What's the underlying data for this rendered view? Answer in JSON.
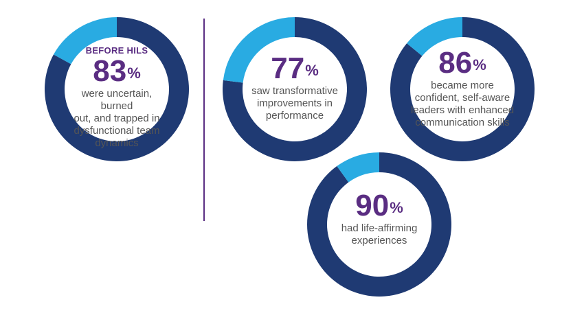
{
  "colors": {
    "main": "#1f3a73",
    "accent": "#29abe2",
    "text_purple": "#5a2d82",
    "caption": "#555555"
  },
  "chart_data": [
    {
      "type": "pie",
      "id": "before",
      "pre_label": "BEFORE HILS",
      "value": 83,
      "value_text": "83",
      "unit": "%",
      "caption": [
        "were uncertain, burned",
        "out, and trapped in",
        "dysfunctional team",
        "dynamics"
      ]
    },
    {
      "type": "pie",
      "id": "transform",
      "pre_label": "",
      "value": 77,
      "value_text": "77",
      "unit": "%",
      "caption": [
        "saw transformative",
        "improvements in",
        "performance"
      ]
    },
    {
      "type": "pie",
      "id": "confident",
      "pre_label": "",
      "value": 86,
      "value_text": "86",
      "unit": "%",
      "caption": [
        "became more",
        "confident, self-aware",
        "leaders with enhanced",
        "communication skills"
      ]
    },
    {
      "type": "pie",
      "id": "life",
      "pre_label": "",
      "value": 90,
      "value_text": "90",
      "unit": "%",
      "caption": [
        "had life-affirming",
        "experiences"
      ]
    }
  ]
}
